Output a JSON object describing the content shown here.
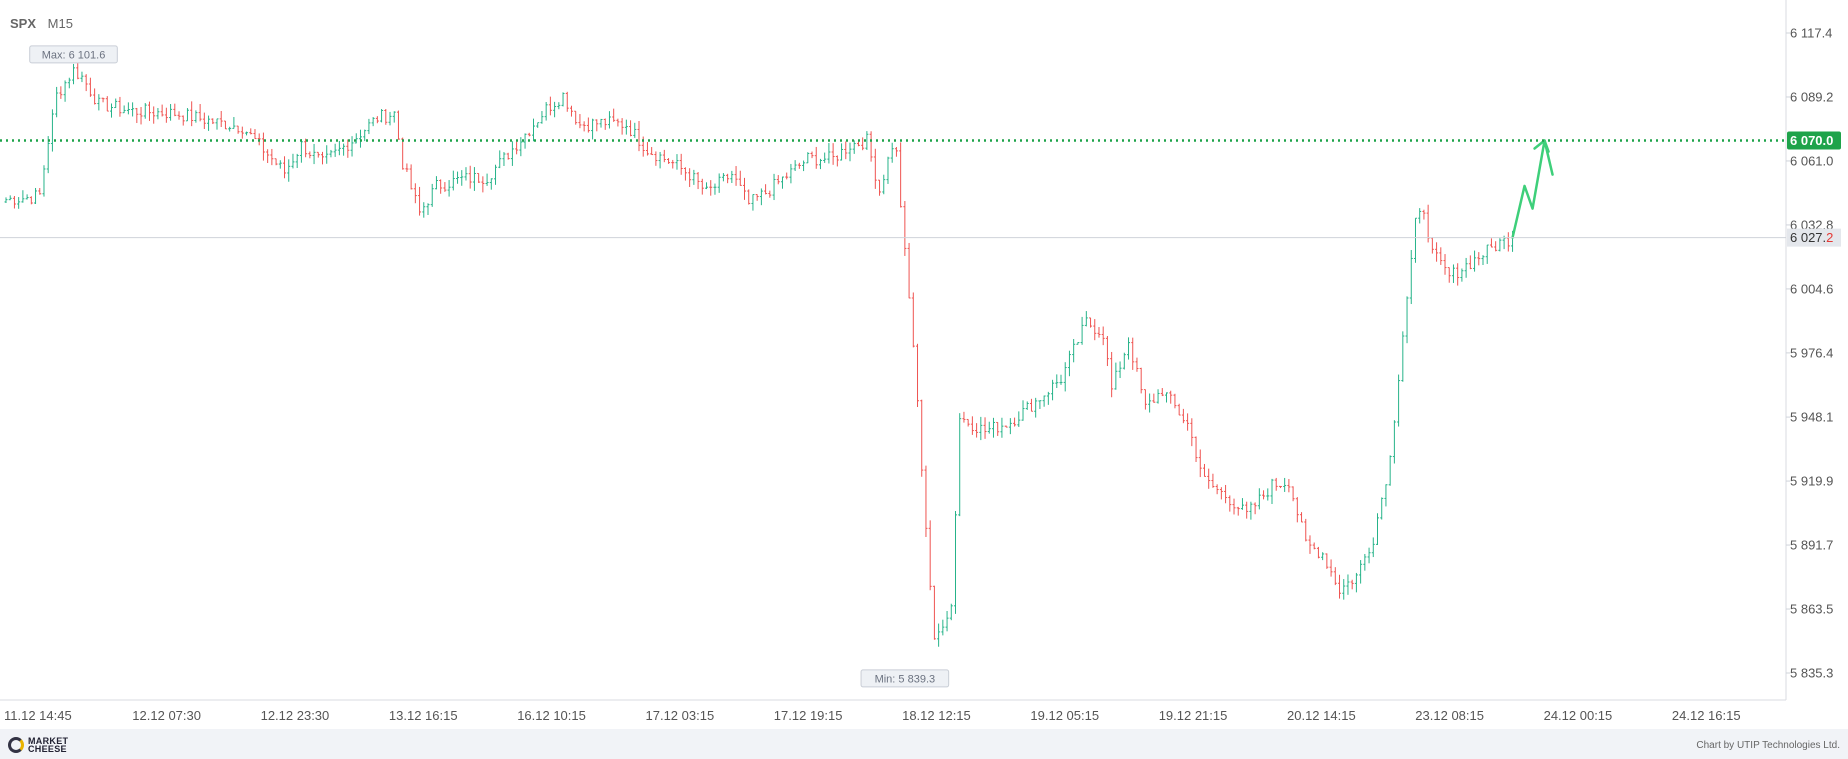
{
  "header": {
    "symbol": "SPX",
    "timeframe": "M15"
  },
  "chart_data": {
    "type": "candlestick",
    "title": "",
    "xlabel": "",
    "ylabel": "",
    "ylim": [
      5825,
      6125
    ],
    "y_ticks": [
      {
        "value": 6117.4,
        "label": "6 117.4"
      },
      {
        "value": 6089.2,
        "label": "6 089.2"
      },
      {
        "value": 6061.0,
        "label": "6 061.0"
      },
      {
        "value": 6032.8,
        "label": "6 032.8"
      },
      {
        "value": 6004.6,
        "label": "6 004.6"
      },
      {
        "value": 5976.4,
        "label": "5 976.4"
      },
      {
        "value": 5948.1,
        "label": "5 948.1"
      },
      {
        "value": 5919.9,
        "label": "5 919.9"
      },
      {
        "value": 5891.7,
        "label": "5 891.7"
      },
      {
        "value": 5863.5,
        "label": "5 863.5"
      },
      {
        "value": 5835.3,
        "label": "5 835.3"
      }
    ],
    "x_ticks": [
      "11.12 14:45",
      "12.12 07:30",
      "12.12 23:30",
      "13.12 16:15",
      "16.12 10:15",
      "17.12 03:15",
      "17.12 19:15",
      "18.12 12:15",
      "19.12 05:15",
      "19.12 21:15",
      "20.12 14:15",
      "23.12 08:15",
      "24.12 00:15",
      "24.12 16:15"
    ],
    "target_level": {
      "value": 6070.0,
      "label": "6 070.0",
      "color": "#1ea34a"
    },
    "current_price": {
      "value": 6027.2,
      "label_prefix": "6 027.",
      "label_last": "2",
      "color_last": "#e53935"
    },
    "max_marker": {
      "value": 6101.6,
      "label": "Max: 6 101.6",
      "index": 16
    },
    "min_marker": {
      "value": 5839.3,
      "label": "Min: 5 839.3",
      "index": 213
    },
    "projection_arrow_color": "#3ecf7a",
    "up_color": "#26b389",
    "down_color": "#ef5350",
    "keypoints": [
      [
        0,
        6044
      ],
      [
        6,
        6045
      ],
      [
        8,
        6046
      ],
      [
        10,
        6070
      ],
      [
        12,
        6090
      ],
      [
        16,
        6101
      ],
      [
        18,
        6098
      ],
      [
        22,
        6086
      ],
      [
        30,
        6083
      ],
      [
        40,
        6082
      ],
      [
        50,
        6078
      ],
      [
        56,
        6076
      ],
      [
        60,
        6068
      ],
      [
        66,
        6056
      ],
      [
        70,
        6068
      ],
      [
        75,
        6060
      ],
      [
        82,
        6070
      ],
      [
        88,
        6080
      ],
      [
        92,
        6082
      ],
      [
        94,
        6060
      ],
      [
        98,
        6038
      ],
      [
        102,
        6050
      ],
      [
        108,
        6053
      ],
      [
        114,
        6054
      ],
      [
        118,
        6062
      ],
      [
        124,
        6075
      ],
      [
        128,
        6084
      ],
      [
        132,
        6090
      ],
      [
        136,
        6077
      ],
      [
        142,
        6078
      ],
      [
        147,
        6077
      ],
      [
        152,
        6066
      ],
      [
        158,
        6060
      ],
      [
        162,
        6055
      ],
      [
        166,
        6047
      ],
      [
        172,
        6055
      ],
      [
        176,
        6042
      ],
      [
        180,
        6047
      ],
      [
        186,
        6056
      ],
      [
        190,
        6062
      ],
      [
        196,
        6062
      ],
      [
        200,
        6068
      ],
      [
        204,
        6070
      ],
      [
        207,
        6048
      ],
      [
        210,
        6068
      ],
      [
        211,
        6064
      ],
      [
        213,
        6020
      ],
      [
        215,
        5980
      ],
      [
        218,
        5900
      ],
      [
        220,
        5848
      ],
      [
        222,
        5858
      ],
      [
        224,
        5865
      ],
      [
        226,
        5948
      ],
      [
        232,
        5942
      ],
      [
        238,
        5946
      ],
      [
        244,
        5955
      ],
      [
        250,
        5965
      ],
      [
        256,
        5990
      ],
      [
        260,
        5985
      ],
      [
        262,
        5960
      ],
      [
        266,
        5982
      ],
      [
        270,
        5952
      ],
      [
        274,
        5960
      ],
      [
        280,
        5945
      ],
      [
        284,
        5920
      ],
      [
        290,
        5912
      ],
      [
        294,
        5905
      ],
      [
        300,
        5918
      ],
      [
        304,
        5920
      ],
      [
        308,
        5892
      ],
      [
        312,
        5888
      ],
      [
        316,
        5872
      ],
      [
        320,
        5878
      ],
      [
        324,
        5895
      ],
      [
        328,
        5930
      ],
      [
        331,
        5985
      ],
      [
        334,
        6033
      ],
      [
        336,
        6040
      ],
      [
        338,
        6020
      ],
      [
        342,
        6010
      ],
      [
        346,
        6015
      ],
      [
        350,
        6020
      ],
      [
        354,
        6025
      ],
      [
        357,
        6027.2
      ]
    ]
  },
  "footer": {
    "brand_line1": "MARKET",
    "brand_line2": "CHEESE",
    "credit": "Chart by UTIP Technologies Ltd."
  }
}
